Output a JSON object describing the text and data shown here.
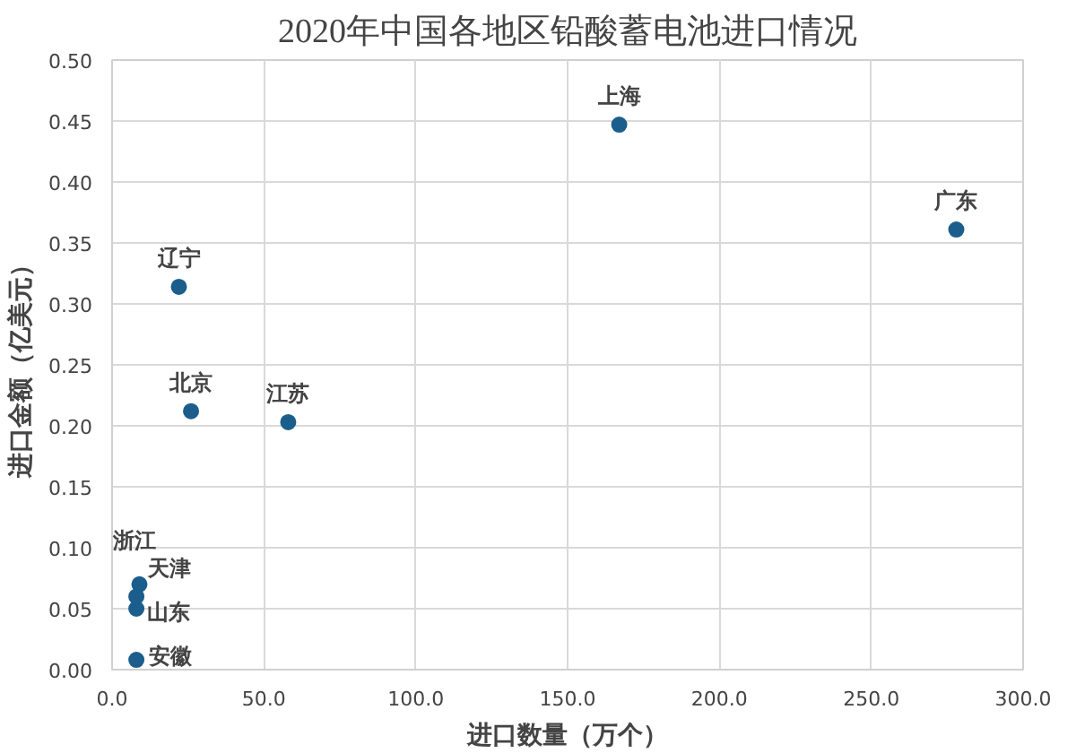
{
  "chart_data": {
    "type": "scatter",
    "title": "2020年中国各地区铅酸蓄电池进口情况",
    "xlabel": "进口数量（万个）",
    "ylabel": "进口金额（亿美元）",
    "x": [
      167,
      278,
      22,
      26,
      58,
      8,
      9,
      8,
      8
    ],
    "series": [
      {
        "color": "#1b5e8c",
        "values": [
          0.447,
          0.361,
          0.314,
          0.212,
          0.203,
          0.06,
          0.07,
          0.05,
          0.008
        ]
      }
    ],
    "annotations": [
      {
        "text": "上海",
        "x": 167,
        "y": 0.447
      },
      {
        "text": "广东",
        "x": 278,
        "y": 0.361
      },
      {
        "text": "辽宁",
        "x": 22,
        "y": 0.314
      },
      {
        "text": "北京",
        "x": 26,
        "y": 0.212
      },
      {
        "text": "江苏",
        "x": 58,
        "y": 0.203
      },
      {
        "text": "浙江",
        "x": 8,
        "y": 0.06
      },
      {
        "text": "天津",
        "x": 9,
        "y": 0.07
      },
      {
        "text": "山东",
        "x": 8,
        "y": 0.05
      },
      {
        "text": "安徽",
        "x": 8,
        "y": 0.008
      }
    ],
    "xlim": [
      0,
      300
    ],
    "ylim": [
      0,
      0.5
    ],
    "xticks": [
      {
        "value": 0,
        "label": "0.0"
      },
      {
        "value": 50,
        "label": "50.0"
      },
      {
        "value": 100,
        "label": "100.0"
      },
      {
        "value": 150,
        "label": "150.0"
      },
      {
        "value": 200,
        "label": "200.0"
      },
      {
        "value": 250,
        "label": "250.0"
      },
      {
        "value": 300,
        "label": "300.0"
      }
    ],
    "yticks": [
      {
        "value": 0,
        "label": "0.00"
      },
      {
        "value": 0.05,
        "label": "0.05"
      },
      {
        "value": 0.1,
        "label": "0.10"
      },
      {
        "value": 0.15,
        "label": "0.15"
      },
      {
        "value": 0.2,
        "label": "0.20"
      },
      {
        "value": 0.25,
        "label": "0.25"
      },
      {
        "value": 0.3,
        "label": "0.30"
      },
      {
        "value": 0.35,
        "label": "0.35"
      },
      {
        "value": 0.4,
        "label": "0.40"
      },
      {
        "value": 0.45,
        "label": "0.45"
      },
      {
        "value": 0.5,
        "label": "0.50"
      }
    ],
    "grid": true,
    "marker": "circle"
  }
}
